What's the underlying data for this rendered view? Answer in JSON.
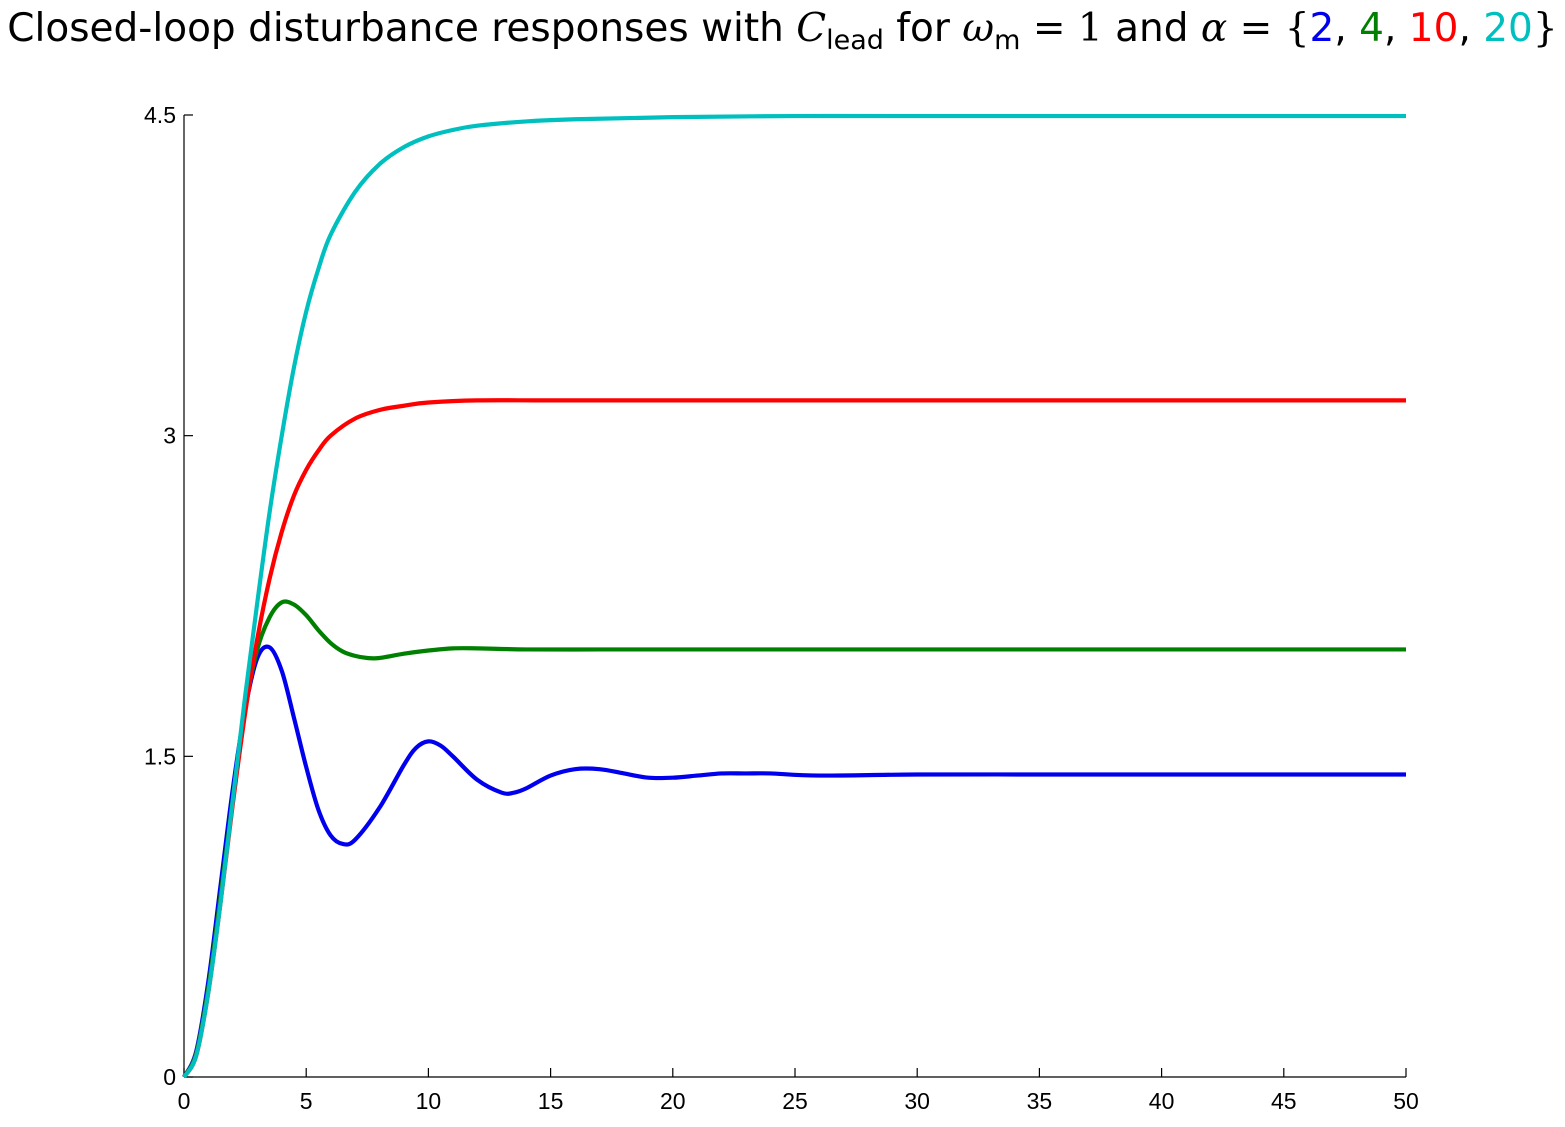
{
  "chart_data": {
    "type": "line",
    "title": {
      "prefix": "Closed-loop disturbance responses with ",
      "c_symbol": "C",
      "c_subscript": "lead",
      "for_text": " for ",
      "omega_symbol": "ω",
      "omega_subscript": "m",
      "equals_one": " = 1",
      "and_text": " and ",
      "alpha_symbol": "α",
      "equals": " = ",
      "open_brace": "{",
      "close_brace": "}",
      "separator": ", "
    },
    "alpha_values": [
      {
        "label": "2",
        "color": "#0000ee"
      },
      {
        "label": "4",
        "color": "#008000"
      },
      {
        "label": "10",
        "color": "#ff0000"
      },
      {
        "label": "20",
        "color": "#00bfbf"
      }
    ],
    "xlim": [
      0,
      50
    ],
    "ylim": [
      0,
      4.5
    ],
    "x_ticks": [
      "0",
      "5",
      "10",
      "15",
      "20",
      "25",
      "30",
      "35",
      "40",
      "45",
      "50"
    ],
    "y_ticks": [
      "0",
      "1.5",
      "3",
      "4.5"
    ],
    "grid": false,
    "series": [
      {
        "color": "#0000ee",
        "points": [
          [
            0,
            0
          ],
          [
            0.5,
            0.12
          ],
          [
            1,
            0.45
          ],
          [
            1.5,
            0.9
          ],
          [
            2,
            1.35
          ],
          [
            2.5,
            1.72
          ],
          [
            3,
            1.96
          ],
          [
            3.5,
            2.01
          ],
          [
            4,
            1.9
          ],
          [
            4.5,
            1.68
          ],
          [
            5,
            1.45
          ],
          [
            5.5,
            1.25
          ],
          [
            6,
            1.13
          ],
          [
            6.5,
            1.09
          ],
          [
            7,
            1.11
          ],
          [
            8,
            1.26
          ],
          [
            9,
            1.46
          ],
          [
            9.5,
            1.54
          ],
          [
            10,
            1.57
          ],
          [
            10.5,
            1.55
          ],
          [
            11,
            1.5
          ],
          [
            12,
            1.39
          ],
          [
            13,
            1.33
          ],
          [
            13.5,
            1.33
          ],
          [
            14,
            1.35
          ],
          [
            15,
            1.41
          ],
          [
            16,
            1.44
          ],
          [
            17,
            1.44
          ],
          [
            18,
            1.42
          ],
          [
            19,
            1.4
          ],
          [
            20,
            1.4
          ],
          [
            21,
            1.41
          ],
          [
            22,
            1.42
          ],
          [
            23,
            1.42
          ],
          [
            24,
            1.42
          ],
          [
            26,
            1.41
          ],
          [
            30,
            1.415
          ],
          [
            35,
            1.415
          ],
          [
            40,
            1.415
          ],
          [
            45,
            1.415
          ],
          [
            50,
            1.415
          ]
        ]
      },
      {
        "color": "#008000",
        "points": [
          [
            0,
            0
          ],
          [
            0.5,
            0.11
          ],
          [
            1,
            0.42
          ],
          [
            1.5,
            0.85
          ],
          [
            2,
            1.3
          ],
          [
            2.5,
            1.72
          ],
          [
            3,
            2.0
          ],
          [
            3.5,
            2.15
          ],
          [
            4,
            2.22
          ],
          [
            4.5,
            2.21
          ],
          [
            5,
            2.16
          ],
          [
            5.5,
            2.09
          ],
          [
            6,
            2.03
          ],
          [
            6.5,
            1.99
          ],
          [
            7,
            1.97
          ],
          [
            7.5,
            1.96
          ],
          [
            8,
            1.96
          ],
          [
            9,
            1.98
          ],
          [
            10,
            1.995
          ],
          [
            11,
            2.005
          ],
          [
            12,
            2.005
          ],
          [
            14,
            2.0
          ],
          [
            17,
            2.0
          ],
          [
            20,
            2.0
          ],
          [
            30,
            2.0
          ],
          [
            40,
            2.0
          ],
          [
            50,
            2.0
          ]
        ]
      },
      {
        "color": "#ff0000",
        "points": [
          [
            0,
            0
          ],
          [
            0.5,
            0.1
          ],
          [
            1,
            0.4
          ],
          [
            1.5,
            0.82
          ],
          [
            2,
            1.28
          ],
          [
            2.5,
            1.7
          ],
          [
            3,
            2.05
          ],
          [
            3.5,
            2.33
          ],
          [
            4,
            2.55
          ],
          [
            4.5,
            2.72
          ],
          [
            5,
            2.84
          ],
          [
            5.5,
            2.93
          ],
          [
            6,
            3.0
          ],
          [
            7,
            3.08
          ],
          [
            8,
            3.12
          ],
          [
            9,
            3.14
          ],
          [
            10,
            3.155
          ],
          [
            12,
            3.165
          ],
          [
            15,
            3.165
          ],
          [
            20,
            3.165
          ],
          [
            30,
            3.165
          ],
          [
            40,
            3.165
          ],
          [
            50,
            3.165
          ]
        ]
      },
      {
        "color": "#00bfbf",
        "points": [
          [
            0,
            0
          ],
          [
            0.5,
            0.1
          ],
          [
            1,
            0.4
          ],
          [
            1.5,
            0.82
          ],
          [
            2,
            1.3
          ],
          [
            2.5,
            1.78
          ],
          [
            3,
            2.22
          ],
          [
            3.5,
            2.64
          ],
          [
            4,
            3.0
          ],
          [
            4.5,
            3.32
          ],
          [
            5,
            3.58
          ],
          [
            5.5,
            3.78
          ],
          [
            6,
            3.94
          ],
          [
            7,
            4.14
          ],
          [
            8,
            4.27
          ],
          [
            9,
            4.35
          ],
          [
            10,
            4.4
          ],
          [
            11,
            4.43
          ],
          [
            12,
            4.45
          ],
          [
            14,
            4.47
          ],
          [
            16,
            4.48
          ],
          [
            20,
            4.49
          ],
          [
            25,
            4.495
          ],
          [
            30,
            4.495
          ],
          [
            40,
            4.495
          ],
          [
            50,
            4.495
          ]
        ]
      }
    ]
  }
}
